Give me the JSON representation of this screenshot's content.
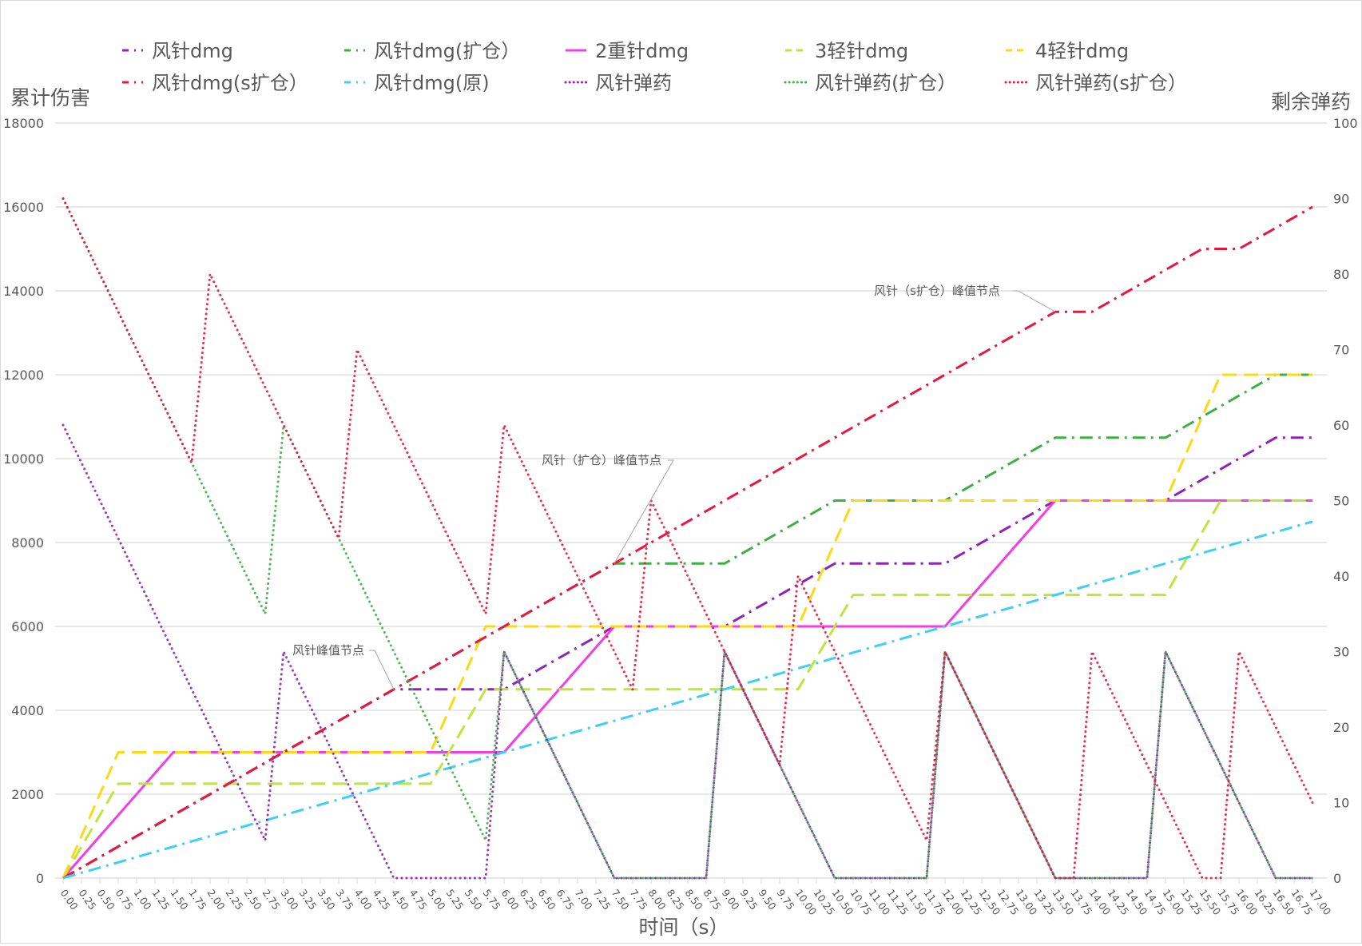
{
  "chart_data": {
    "type": "line",
    "title": "",
    "xlabel": "时间（s）",
    "ylabel_left": "累计伤害",
    "ylabel_right": "剩余弹药",
    "xlim": [
      0,
      17
    ],
    "x_tick_step": 0.25,
    "ylim_left": [
      0,
      18000
    ],
    "y_left_ticks": [
      0,
      2000,
      4000,
      6000,
      8000,
      10000,
      12000,
      14000,
      16000,
      18000
    ],
    "ylim_right": [
      0,
      100
    ],
    "y_right_ticks": [
      0,
      10,
      20,
      30,
      40,
      50,
      60,
      70,
      80,
      90,
      100
    ],
    "grid": "horizontal",
    "legend_position": "top",
    "series": [
      {
        "name": "风针dmg",
        "axis": "left",
        "color": "#8e24b5",
        "style": "dashdot",
        "points": [
          [
            0,
            0
          ],
          [
            4.5,
            4500
          ],
          [
            6,
            4500
          ],
          [
            7.5,
            6000
          ],
          [
            9,
            6000
          ],
          [
            10.5,
            7500
          ],
          [
            12,
            7500
          ],
          [
            13.5,
            9000
          ],
          [
            15,
            9000
          ],
          [
            16.5,
            10500
          ],
          [
            17,
            10500
          ]
        ]
      },
      {
        "name": "风针dmg(扩仓）",
        "axis": "left",
        "color": "#3daf44",
        "style": "dashdot",
        "points": [
          [
            0,
            0
          ],
          [
            7.5,
            7500
          ],
          [
            9,
            7500
          ],
          [
            10.5,
            9000
          ],
          [
            12,
            9000
          ],
          [
            13.5,
            10500
          ],
          [
            15,
            10500
          ],
          [
            16.5,
            12000
          ],
          [
            17,
            12000
          ]
        ]
      },
      {
        "name": "2重针dmg",
        "axis": "left",
        "color": "#f23ee6",
        "style": "solid",
        "points": [
          [
            0,
            0
          ],
          [
            1.5,
            3000
          ],
          [
            6,
            3000
          ],
          [
            7.5,
            6000
          ],
          [
            12,
            6000
          ],
          [
            13.5,
            9000
          ],
          [
            17,
            9000
          ]
        ]
      },
      {
        "name": "3轻针dmg",
        "axis": "left",
        "color": "#bde63b",
        "style": "dash",
        "points": [
          [
            0,
            0
          ],
          [
            0.75,
            2250
          ],
          [
            5,
            2250
          ],
          [
            5.75,
            4500
          ],
          [
            10,
            4500
          ],
          [
            10.75,
            6750
          ],
          [
            15,
            6750
          ],
          [
            15.75,
            9000
          ],
          [
            17,
            9000
          ]
        ]
      },
      {
        "name": "4轻针dmg",
        "axis": "left",
        "color": "#ffd814",
        "style": "dash",
        "points": [
          [
            0,
            0
          ],
          [
            0.75,
            3000
          ],
          [
            5,
            3000
          ],
          [
            5.75,
            6000
          ],
          [
            10,
            6000
          ],
          [
            10.75,
            9000
          ],
          [
            15,
            9000
          ],
          [
            15.75,
            12000
          ],
          [
            17,
            12000
          ]
        ]
      },
      {
        "name": "风针dmg(s扩仓）",
        "axis": "left",
        "color": "#e8173f",
        "style": "dashdot",
        "points": [
          [
            0,
            0
          ],
          [
            13.5,
            13500
          ],
          [
            14,
            13500
          ],
          [
            15.5,
            15000
          ],
          [
            16,
            15000
          ],
          [
            17,
            16000
          ]
        ]
      },
      {
        "name": "风针dmg(原)",
        "axis": "left",
        "color": "#3fcff4",
        "style": "dashdot",
        "points": [
          [
            0,
            0
          ],
          [
            17,
            8500
          ]
        ]
      },
      {
        "name": "风针弹药",
        "axis": "right",
        "color": "#8e24b5",
        "style": "dot",
        "points": [
          [
            0,
            60
          ],
          [
            2.75,
            5
          ],
          [
            3,
            30
          ],
          [
            4.5,
            0
          ],
          [
            5.75,
            0
          ],
          [
            6,
            30
          ],
          [
            7.5,
            0
          ],
          [
            8.75,
            0
          ],
          [
            9,
            30
          ],
          [
            10.5,
            0
          ],
          [
            11.75,
            0
          ],
          [
            12,
            30
          ],
          [
            13.5,
            0
          ],
          [
            14.75,
            0
          ],
          [
            15,
            30
          ],
          [
            16.5,
            0
          ],
          [
            17,
            0
          ]
        ]
      },
      {
        "name": "风针弹药(扩仓）",
        "axis": "right",
        "color": "#3daf44",
        "style": "dot",
        "points": [
          [
            0,
            90
          ],
          [
            2.75,
            35
          ],
          [
            3,
            60
          ],
          [
            5.75,
            5
          ],
          [
            6,
            30
          ],
          [
            7.5,
            0
          ],
          [
            8.75,
            0
          ],
          [
            9,
            30
          ],
          [
            10.5,
            0
          ],
          [
            11.75,
            0
          ],
          [
            12,
            30
          ],
          [
            13.5,
            0
          ],
          [
            14.75,
            0
          ],
          [
            15,
            30
          ],
          [
            16.5,
            0
          ],
          [
            17,
            0
          ]
        ]
      },
      {
        "name": "风针弹药(s扩仓）",
        "axis": "right",
        "color": "#e8173f",
        "style": "dot",
        "points": [
          [
            0,
            90
          ],
          [
            1.75,
            55
          ],
          [
            2,
            80
          ],
          [
            3.75,
            45
          ],
          [
            4,
            70
          ],
          [
            5.75,
            35
          ],
          [
            6,
            60
          ],
          [
            7.75,
            25
          ],
          [
            8,
            50
          ],
          [
            9.75,
            15
          ],
          [
            10,
            40
          ],
          [
            11.75,
            5
          ],
          [
            12,
            30
          ],
          [
            13.5,
            0
          ],
          [
            13.75,
            0
          ],
          [
            14,
            30
          ],
          [
            15.5,
            0
          ],
          [
            15.75,
            0
          ],
          [
            16,
            30
          ],
          [
            17,
            10
          ]
        ]
      }
    ],
    "annotations": [
      {
        "text": "风针峰值节点",
        "x": 4.5,
        "y": 4500
      },
      {
        "text": "风针（扩仓）峰值节点",
        "x": 7.5,
        "y": 7500
      },
      {
        "text": "风针（s扩仓）峰值节点",
        "x": 13.5,
        "y": 13500
      }
    ]
  }
}
